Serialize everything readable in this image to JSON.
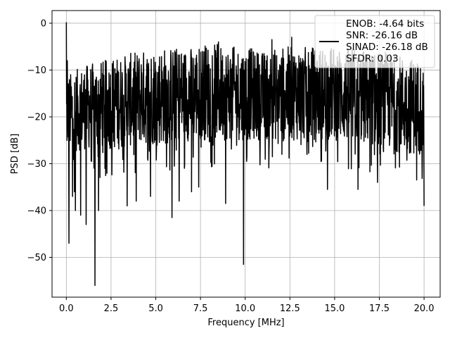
{
  "chart_data": {
    "type": "line",
    "title": "",
    "xlabel": "Frequency [MHz]",
    "ylabel": "PSD [dB]",
    "xlim": [
      -0.8,
      20.9
    ],
    "ylim": [
      -58.5,
      2.7
    ],
    "xticks": [
      0.0,
      2.5,
      5.0,
      7.5,
      10.0,
      12.5,
      15.0,
      17.5,
      20.0
    ],
    "xtick_labels": [
      "0.0",
      "2.5",
      "5.0",
      "7.5",
      "10.0",
      "12.5",
      "15.0",
      "17.5",
      "20.0"
    ],
    "yticks": [
      0,
      -10,
      -20,
      -30,
      -40,
      -50
    ],
    "ytick_labels": [
      "0",
      "−10",
      "−20",
      "−30",
      "−40",
      "−50"
    ],
    "grid": true,
    "legend_position": "top-right",
    "line_color": "#000000",
    "legend_entries": [
      "ENOB: -4.64 bits",
      "SNR: -26.16 dB",
      "SINAD: -26.18 dB",
      "SFDR: 0.03"
    ],
    "series": [
      {
        "x_start": 0.0,
        "x_end": 20.0,
        "noise_band_top": [
          -11,
          -9,
          -8,
          -7,
          -6,
          -5,
          -5,
          -5,
          -4,
          -5,
          -5,
          -6,
          -5,
          -5,
          -5,
          -5,
          -5,
          -6,
          -6,
          -7,
          -8
        ],
        "noise_band_bottom": [
          -28,
          -27,
          -27,
          -27,
          -26,
          -26,
          -26,
          -25,
          -25,
          -25,
          -25,
          -25,
          -25,
          -25,
          -25,
          -25,
          -26,
          -26,
          -27,
          -28,
          -28
        ],
        "peaks": [
          [
            0.0,
            0.2
          ],
          [
            0.05,
            -8
          ],
          [
            3.9,
            -7
          ],
          [
            8.5,
            -4
          ],
          [
            11.5,
            -3.5
          ],
          [
            12.6,
            -3
          ]
        ],
        "dips": [
          [
            0.15,
            -47
          ],
          [
            0.35,
            -37
          ],
          [
            0.45,
            -36
          ],
          [
            0.5,
            -40
          ],
          [
            0.8,
            -41
          ],
          [
            1.1,
            -43
          ],
          [
            1.6,
            -56
          ],
          [
            1.8,
            -40
          ],
          [
            3.4,
            -39
          ],
          [
            3.9,
            -38
          ],
          [
            4.7,
            -37
          ],
          [
            5.9,
            -41.5
          ],
          [
            6.3,
            -38
          ],
          [
            7.0,
            -36
          ],
          [
            7.4,
            -35
          ],
          [
            8.9,
            -38.5
          ],
          [
            9.9,
            -51.5
          ],
          [
            14.6,
            -35.5
          ],
          [
            16.3,
            -35.5
          ],
          [
            17.4,
            -34
          ],
          [
            20.0,
            -39
          ]
        ]
      }
    ]
  }
}
